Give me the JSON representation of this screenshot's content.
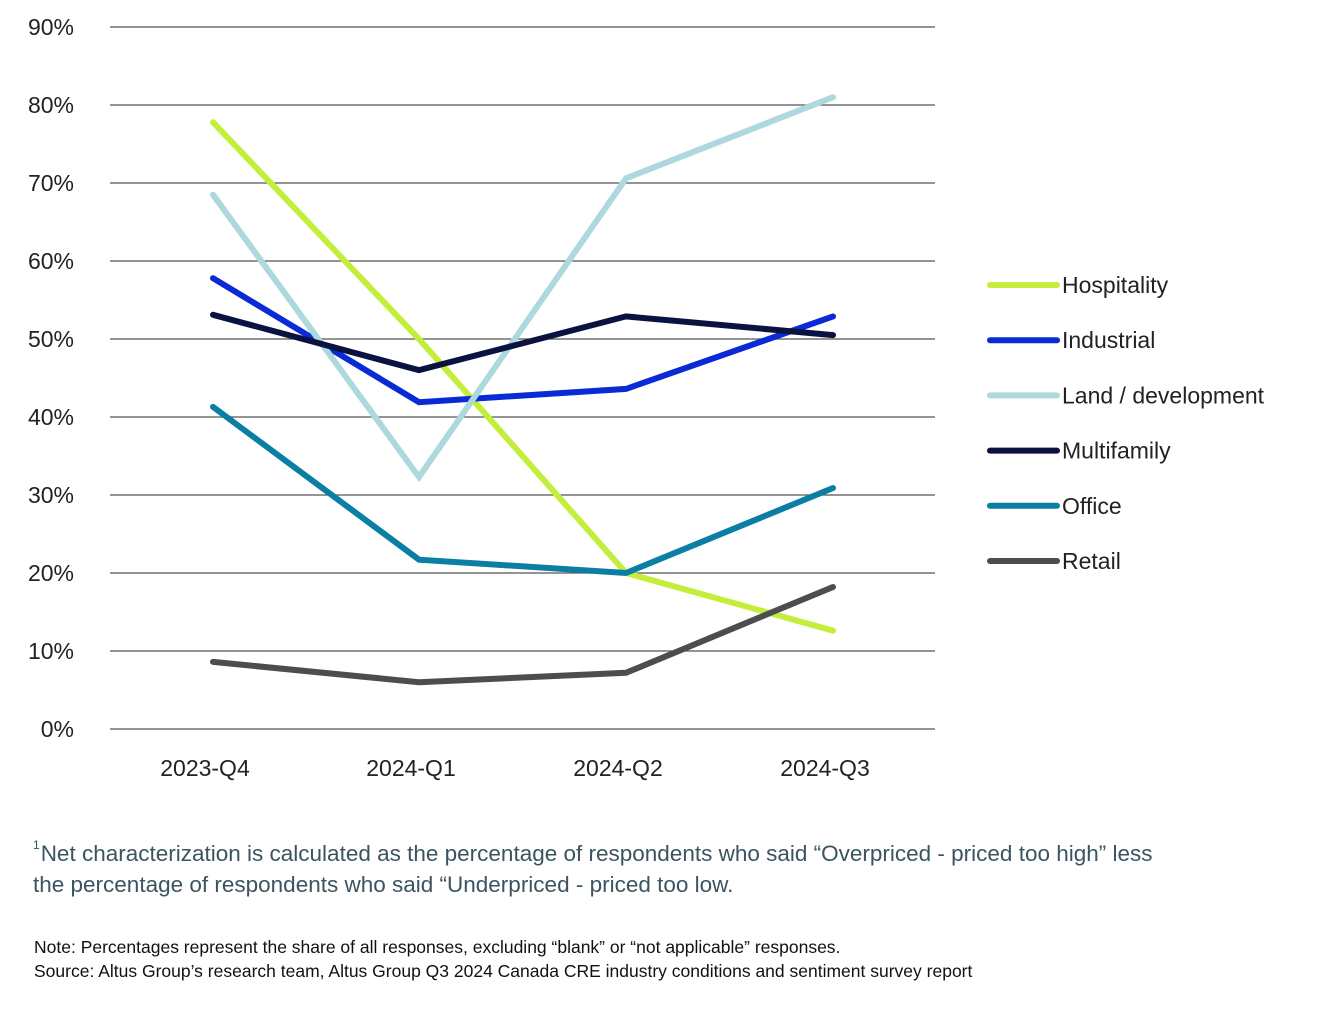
{
  "chart_data": {
    "type": "line",
    "title": "",
    "xlabel": "",
    "ylabel": "",
    "categories": [
      "2023-Q4",
      "2024-Q1",
      "2024-Q2",
      "2024-Q3"
    ],
    "ylim": [
      0,
      90
    ],
    "yticks": [
      0,
      10,
      20,
      30,
      40,
      50,
      60,
      70,
      80,
      90
    ],
    "ytick_labels": [
      "0%",
      "10%",
      "20%",
      "30%",
      "40%",
      "50%",
      "60%",
      "70%",
      "80%",
      "90%"
    ],
    "grid": true,
    "legend_position": "right",
    "series": [
      {
        "name": "Hospitality",
        "color": "#c3ef3c",
        "values": [
          77.8,
          50.0,
          20.0,
          12.6
        ]
      },
      {
        "name": "Industrial",
        "color": "#0a2ad6",
        "values": [
          57.8,
          41.9,
          43.6,
          52.9
        ]
      },
      {
        "name": "Land / development",
        "color": "#acd8de",
        "values": [
          68.5,
          32.3,
          70.6,
          81.0
        ]
      },
      {
        "name": "Multifamily",
        "color": "#0a1240",
        "values": [
          53.1,
          46.0,
          52.9,
          50.5
        ]
      },
      {
        "name": "Office",
        "color": "#0b7ea3",
        "values": [
          41.3,
          21.7,
          20.0,
          30.9
        ]
      },
      {
        "name": "Retail",
        "color": "#4d4d4f",
        "values": [
          8.6,
          6.0,
          7.2,
          18.2
        ]
      }
    ]
  },
  "footnote": {
    "marker": "1",
    "text": "Net characterization is calculated as the percentage of respondents who said “Overpriced - priced too high” less the percentage of respondents who said “Underpriced - priced too low."
  },
  "note": {
    "line1": "Note: Percentages represent the share of all responses, excluding “blank” or “not applicable” responses.",
    "line2": "Source: Altus Group’s research team, Altus Group Q3 2024 Canada CRE industry conditions and sentiment survey report"
  }
}
